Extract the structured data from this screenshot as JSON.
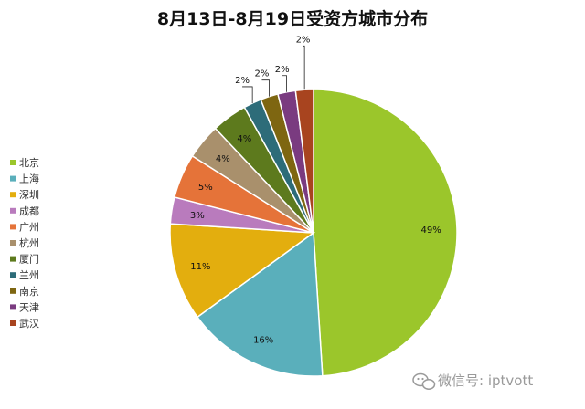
{
  "chart_data": {
    "type": "pie",
    "title": "8月13日-8月19日受资方城市分布",
    "categories": [
      "北京",
      "上海",
      "深圳",
      "成都",
      "广州",
      "杭州",
      "厦门",
      "兰州",
      "南京",
      "天津",
      "武汉"
    ],
    "values": [
      49,
      16,
      11,
      3,
      5,
      4,
      4,
      2,
      2,
      2,
      2
    ],
    "data_labels": [
      "49%",
      "16%",
      "11%",
      "3%",
      "5%",
      "4%",
      "4%",
      "2%",
      "2%",
      "2%",
      "2%"
    ],
    "colors": [
      "#9bc62b",
      "#5aafbb",
      "#e3ae0e",
      "#b97bbd",
      "#e57339",
      "#a9906c",
      "#5d7a1d",
      "#2d6c79",
      "#7e6611",
      "#7a3b80",
      "#a8441f"
    ],
    "start_angle_deg": 0,
    "direction": "clockwise",
    "legend_position": "left"
  },
  "watermark": {
    "text": "微信号: iptvott",
    "icon": "wechat-icon"
  }
}
